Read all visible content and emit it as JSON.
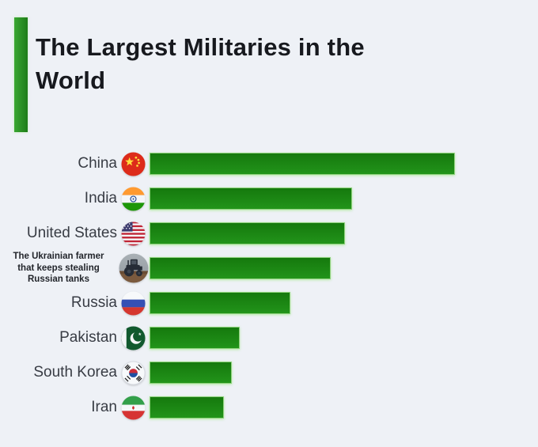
{
  "page": {
    "background": "#eef1f6"
  },
  "header": {
    "title": "The Largest Militaries in the World",
    "accent_color": "#2e9626"
  },
  "chart_data": {
    "type": "bar",
    "orientation": "horizontal",
    "title": "The Largest Militaries in the World",
    "categories": [
      "China",
      "India",
      "United States",
      "The Ukrainian farmer that keeps stealing Russian tanks",
      "Russia",
      "Pakistan",
      "South Korea",
      "Iran"
    ],
    "values_pct_of_longest_bar": [
      100,
      66.3,
      64,
      59.3,
      46.1,
      29.5,
      26.9,
      24.4
    ],
    "value_labels_shown": false,
    "axes_shown": false,
    "gridlines": false,
    "legend_position": "none",
    "bar_color": "#1d8a14",
    "background_color": "#eef1f6"
  },
  "rows": [
    {
      "id": "china",
      "label": "China",
      "icon": "china-flag-icon",
      "pct": 100,
      "small": false
    },
    {
      "id": "india",
      "label": "India",
      "icon": "india-flag-icon",
      "pct": 66.3,
      "small": false
    },
    {
      "id": "united-states",
      "label": "United States",
      "icon": "us-flag-icon",
      "pct": 64,
      "small": false
    },
    {
      "id": "ukrainian-farmer",
      "label": "The Ukrainian farmer\nthat keeps stealing\nRussian tanks",
      "icon": "ukrainian-farmer-tractor-photo",
      "pct": 59.3,
      "small": true
    },
    {
      "id": "russia",
      "label": "Russia",
      "icon": "russia-flag-icon",
      "pct": 46.1,
      "small": false
    },
    {
      "id": "pakistan",
      "label": "Pakistan",
      "icon": "pakistan-flag-icon",
      "pct": 29.5,
      "small": false
    },
    {
      "id": "south-korea",
      "label": "South Korea",
      "icon": "south-korea-flag-icon",
      "pct": 26.9,
      "small": false
    },
    {
      "id": "iran",
      "label": "Iran",
      "icon": "iran-flag-icon",
      "pct": 24.4,
      "small": false
    }
  ]
}
